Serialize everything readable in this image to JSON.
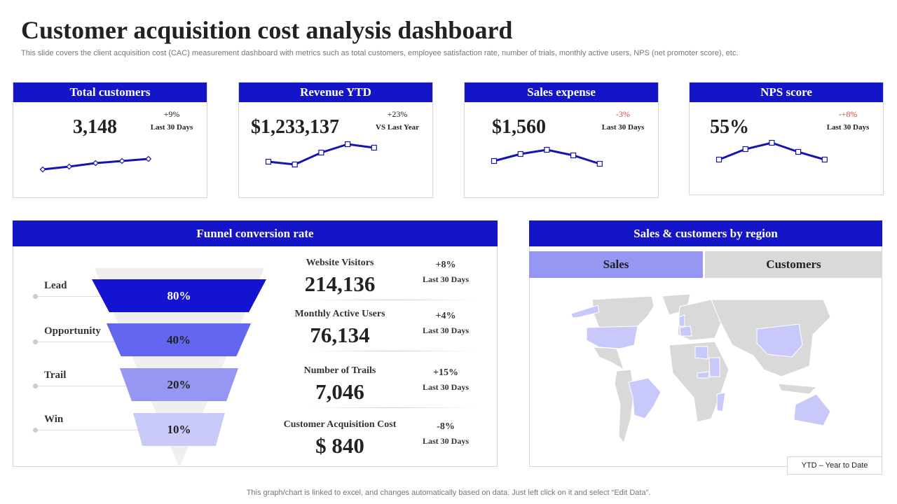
{
  "header": {
    "title": "Customer acquisition cost analysis dashboard",
    "subtitle": "This slide covers the client acquisition cost (CAC) measurement dashboard with metrics such as total customers, employee satisfaction rate, number of trials, monthly active users, NPS (net promoter score), etc."
  },
  "kpis": [
    {
      "title": "Total customers",
      "value": "3,148",
      "change": "+9%",
      "period": "Last 30 Days",
      "change_color": "#222222",
      "trend": [
        0.4,
        0.8,
        1.3,
        1.6,
        1.9
      ],
      "marker": "diamond"
    },
    {
      "title": "Revenue YTD",
      "value": "$1,233,137",
      "change": "+23%",
      "period": "VS Last Year",
      "change_color": "#222222",
      "trend": [
        1.5,
        1.1,
        2.8,
        4.0,
        3.5
      ],
      "marker": "square"
    },
    {
      "title": "Sales expense",
      "value": "$1,560",
      "change": "-3%",
      "period": "Last 30 Days",
      "change_color": "#e04040",
      "trend": [
        1.6,
        2.6,
        3.2,
        2.4,
        1.2
      ],
      "marker": "square"
    },
    {
      "title": "NPS score",
      "value": "55%",
      "change": "-+8%",
      "period": "Last 30 Days",
      "change_color": "#e04040",
      "trend": [
        1.8,
        3.3,
        4.2,
        2.9,
        1.8
      ],
      "marker": "square"
    }
  ],
  "funnel": {
    "title": "Funnel conversion rate",
    "stages": [
      {
        "label": "Lead",
        "value": "80%",
        "color": "#1414d0"
      },
      {
        "label": "Opportunity",
        "value": "40%",
        "color": "#6366ee"
      },
      {
        "label": "Trail",
        "value": "20%",
        "color": "#9597f2"
      },
      {
        "label": "Win",
        "value": "10%",
        "color": "#c9caf8"
      }
    ],
    "metrics": [
      {
        "label": "Website Visitors",
        "value": "214,136",
        "change": "+8%",
        "period": "Last 30 Days"
      },
      {
        "label": "Monthly Active Users",
        "value": "76,134",
        "change": "+4%",
        "period": "Last 30 Days"
      },
      {
        "label": "Number of Trails",
        "value": "7,046",
        "change": "+15%",
        "period": "Last 30 Days"
      },
      {
        "label": "Customer Acquisition Cost",
        "value": "$ 840",
        "change": "-8%",
        "period": "Last 30 Days"
      }
    ]
  },
  "region": {
    "title": "Sales & customers by region",
    "tabs": [
      {
        "label": "Sales",
        "active": true
      },
      {
        "label": "Customers",
        "active": false
      }
    ],
    "highlight_color": "#c8c9fa",
    "base_color": "#d9d9d9",
    "highlighted_countries": [
      "Alaska",
      "United States",
      "United Kingdom",
      "France",
      "Libya",
      "Sudan",
      "Central African Republic",
      "Brazil",
      "Mozambique",
      "China",
      "Australia"
    ],
    "legend": "YTD – Year  to Date"
  },
  "footer": "This graph/chart is linked to excel,  and changes automatically based on data. Just left click on it and select “Edit Data”."
}
